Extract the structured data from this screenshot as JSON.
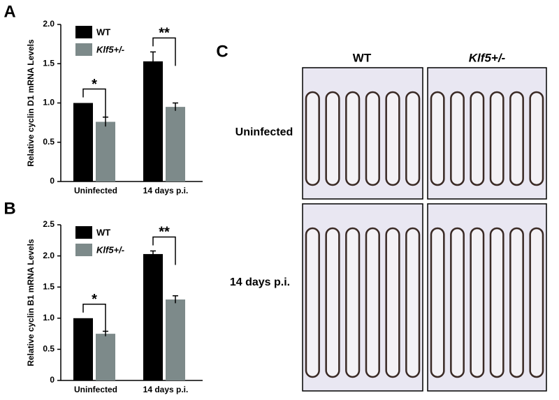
{
  "panel_labels": [
    "A",
    "B",
    "C"
  ],
  "chart_data": [
    {
      "type": "bar",
      "y_label": "Relative cyclin D1 mRNA Levels",
      "categories": [
        "Uninfected",
        "14 days p.i."
      ],
      "series": [
        {
          "name": "WT",
          "color": "#000000",
          "values": [
            1.0,
            1.53
          ],
          "errors": [
            null,
            0.12
          ]
        },
        {
          "name": "Klf5+/-",
          "color": "#7d8a8a",
          "values": [
            0.76,
            0.95
          ],
          "errors": [
            0.06,
            0.05
          ]
        }
      ],
      "ylim": [
        0,
        2
      ],
      "yticks": [
        0,
        0.5,
        {
          "value": 1,
          "label": "1.0"
        },
        1.5,
        {
          "value": 2,
          "label": "2.0"
        }
      ],
      "annotations": [
        "*",
        "**"
      ]
    },
    {
      "type": "bar",
      "y_label": "Relative cyclin B1 mRNA Levels",
      "categories": [
        "Uninfected",
        "14 days p.i."
      ],
      "series": [
        {
          "name": "WT",
          "color": "#000000",
          "values": [
            1.0,
            2.03
          ],
          "errors": [
            null,
            0.05
          ]
        },
        {
          "name": "Klf5+/-",
          "color": "#7d8a8a",
          "values": [
            0.75,
            1.3
          ],
          "errors": [
            0.04,
            0.06
          ]
        }
      ],
      "ylim": [
        0,
        2.5
      ],
      "yticks": [
        0,
        0.5,
        {
          "value": 1,
          "label": "1.0"
        },
        1.5,
        {
          "value": 2,
          "label": "2.0"
        },
        2.5
      ],
      "annotations": [
        "*",
        "**"
      ]
    }
  ],
  "image_panel": {
    "column_headers": [
      "WT",
      "Klf5+/-"
    ],
    "row_labels": [
      "Uninfected",
      "14 days p.i."
    ]
  }
}
